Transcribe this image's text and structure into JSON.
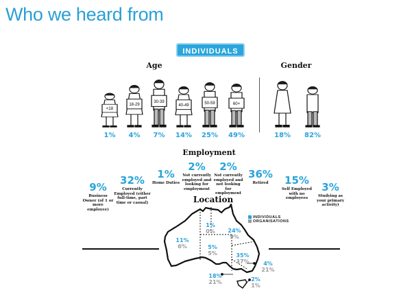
{
  "title": "Who we heard from",
  "badge": "INDIVIDUALS",
  "age": {
    "heading": "Age",
    "groups": [
      {
        "sign": "<18",
        "pct": "1%"
      },
      {
        "sign": "18-29",
        "pct": "4%"
      },
      {
        "sign": "30-39",
        "pct": "7%"
      },
      {
        "sign": "40-49",
        "pct": "14%"
      },
      {
        "sign": "50-59",
        "pct": "25%"
      },
      {
        "sign": "60+",
        "pct": "49%"
      }
    ]
  },
  "gender": {
    "heading": "Gender",
    "groups": [
      {
        "gender": "female",
        "pct": "18%"
      },
      {
        "gender": "male",
        "pct": "82%"
      }
    ]
  },
  "employment": {
    "heading": "Employment",
    "items": [
      {
        "pct": "9%",
        "label": "Business Owner (of 1 or more employee)"
      },
      {
        "pct": "32%",
        "label": "Currently Employed (either full-time, part time or casual)"
      },
      {
        "pct": "1%",
        "label": "Home Duties"
      },
      {
        "pct": "2%",
        "label": "Not currently employed and looking for employment"
      },
      {
        "pct": "2%",
        "label": "Not currently employed and not looking for employment"
      },
      {
        "pct": "36%",
        "label": "Retired"
      },
      {
        "pct": "15%",
        "label": "Self Employed with no employees"
      },
      {
        "pct": "3%",
        "label": "Studying as your primary activity)"
      }
    ]
  },
  "location": {
    "heading": "Location",
    "legend": {
      "individuals": "INDIVIDUALS",
      "organisations": "ORGANISATIONS"
    },
    "colors": {
      "individuals": "#2aa3da",
      "organisations": "#9a9a9a"
    },
    "regions": [
      {
        "region": "WA",
        "individuals": "11%",
        "organisations": "6%"
      },
      {
        "region": "NT",
        "individuals": "1%",
        "organisations": "0%"
      },
      {
        "region": "QLD",
        "individuals": "24%",
        "organisations": "9%"
      },
      {
        "region": "SA",
        "individuals": "5%",
        "organisations": "5%"
      },
      {
        "region": "NSW",
        "individuals": "35%",
        "organisations": "37%"
      },
      {
        "region": "VIC",
        "individuals": "18%",
        "organisations": "21%"
      },
      {
        "region": "ACT",
        "individuals": "4%",
        "organisations": "21%"
      },
      {
        "region": "TAS",
        "individuals": "2%",
        "organisations": "1%"
      }
    ]
  }
}
